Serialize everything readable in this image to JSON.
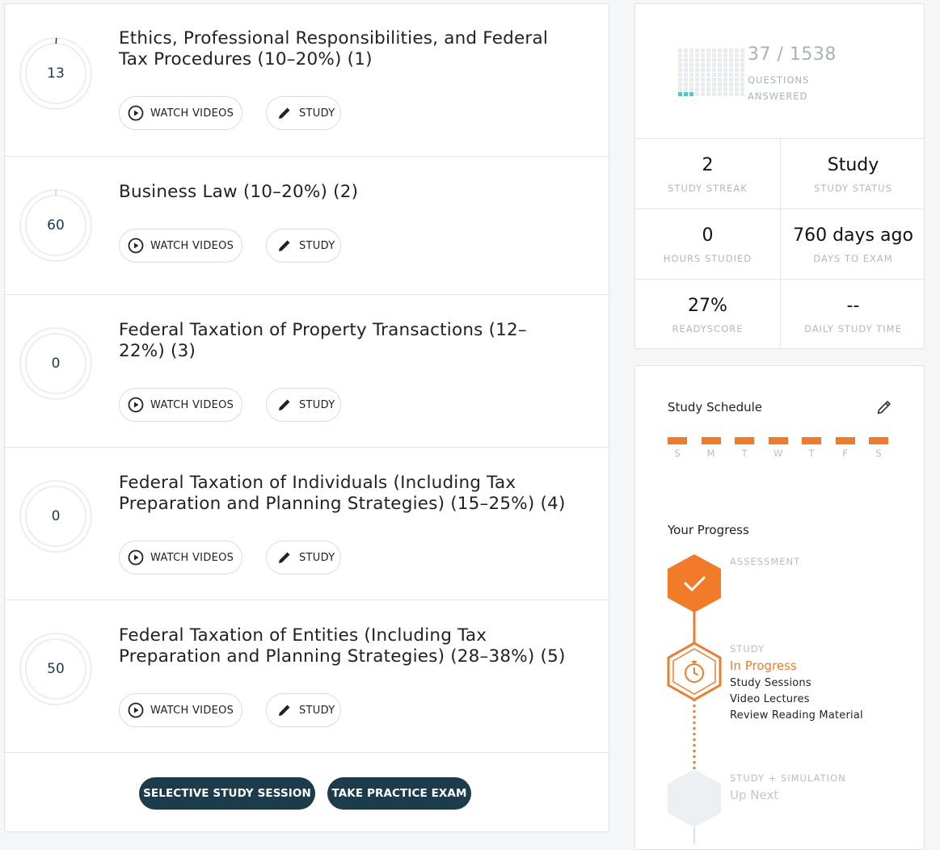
{
  "topics": [
    {
      "value": "13",
      "progress": 0.01,
      "title_line1": "Ethics, Professional Responsibilities, and Federal",
      "title_line2": "Tax Procedures (10–20%) (1)",
      "watch_label": "WATCH VIDEOS",
      "study_label": "STUDY"
    },
    {
      "value": "60",
      "progress": 0.0,
      "title_line1": "Business Law (10–20%) (2)",
      "title_line2": "",
      "watch_label": "WATCH VIDEOS",
      "study_label": "STUDY"
    },
    {
      "value": "0",
      "progress": 0.0,
      "title_line1": "Federal Taxation of Property Transactions (12–",
      "title_line2": "22%) (3)",
      "watch_label": "WATCH VIDEOS",
      "study_label": "STUDY"
    },
    {
      "value": "0",
      "progress": 0.0,
      "title_line1": "Federal Taxation of Individuals (Including Tax",
      "title_line2": "Preparation and Planning Strategies) (15–25%) (4)",
      "watch_label": "WATCH VIDEOS",
      "study_label": "STUDY"
    },
    {
      "value": "50",
      "progress": 0.0,
      "title_line1": "Federal Taxation of Entities (Including Tax",
      "title_line2": "Preparation and Planning Strategies) (28–38%) (5)",
      "watch_label": "WATCH VIDEOS",
      "study_label": "STUDY"
    }
  ],
  "footer": {
    "selective_label": "SELECTIVE STUDY SESSION",
    "practice_label": "TAKE PRACTICE EXAM"
  },
  "stats": {
    "questions_answered": "37",
    "questions_total": "1538",
    "questions_count": "37 / 1538",
    "questions_label_1": "QUESTIONS",
    "questions_label_2": "ANSWERED",
    "cells": [
      {
        "value": "2",
        "label": "STUDY STREAK"
      },
      {
        "value": "Study",
        "label": "STUDY STATUS"
      },
      {
        "value": "0",
        "label": "HOURS STUDIED"
      },
      {
        "value": "760 days ago",
        "label": "DAYS TO EXAM"
      },
      {
        "value": "27%",
        "label": "READYSCORE"
      },
      {
        "value": "--",
        "label": "DAILY STUDY TIME"
      }
    ]
  },
  "schedule": {
    "title": "Study Schedule",
    "days": [
      "S",
      "M",
      "T",
      "W",
      "T",
      "F",
      "S"
    ]
  },
  "progress": {
    "title": "Your Progress",
    "assessment_label": "ASSESSMENT",
    "study_label": "STUDY",
    "study_status": "In Progress",
    "study_items": [
      "Study Sessions",
      "Video Lectures",
      "Review Reading Material"
    ],
    "sim_label": "STUDY + SIMULATION",
    "sim_status": "Up Next"
  },
  "colors": {
    "accent": "#f27b29",
    "navy": "#1c3b4b",
    "teal": "#4ec9c9"
  }
}
